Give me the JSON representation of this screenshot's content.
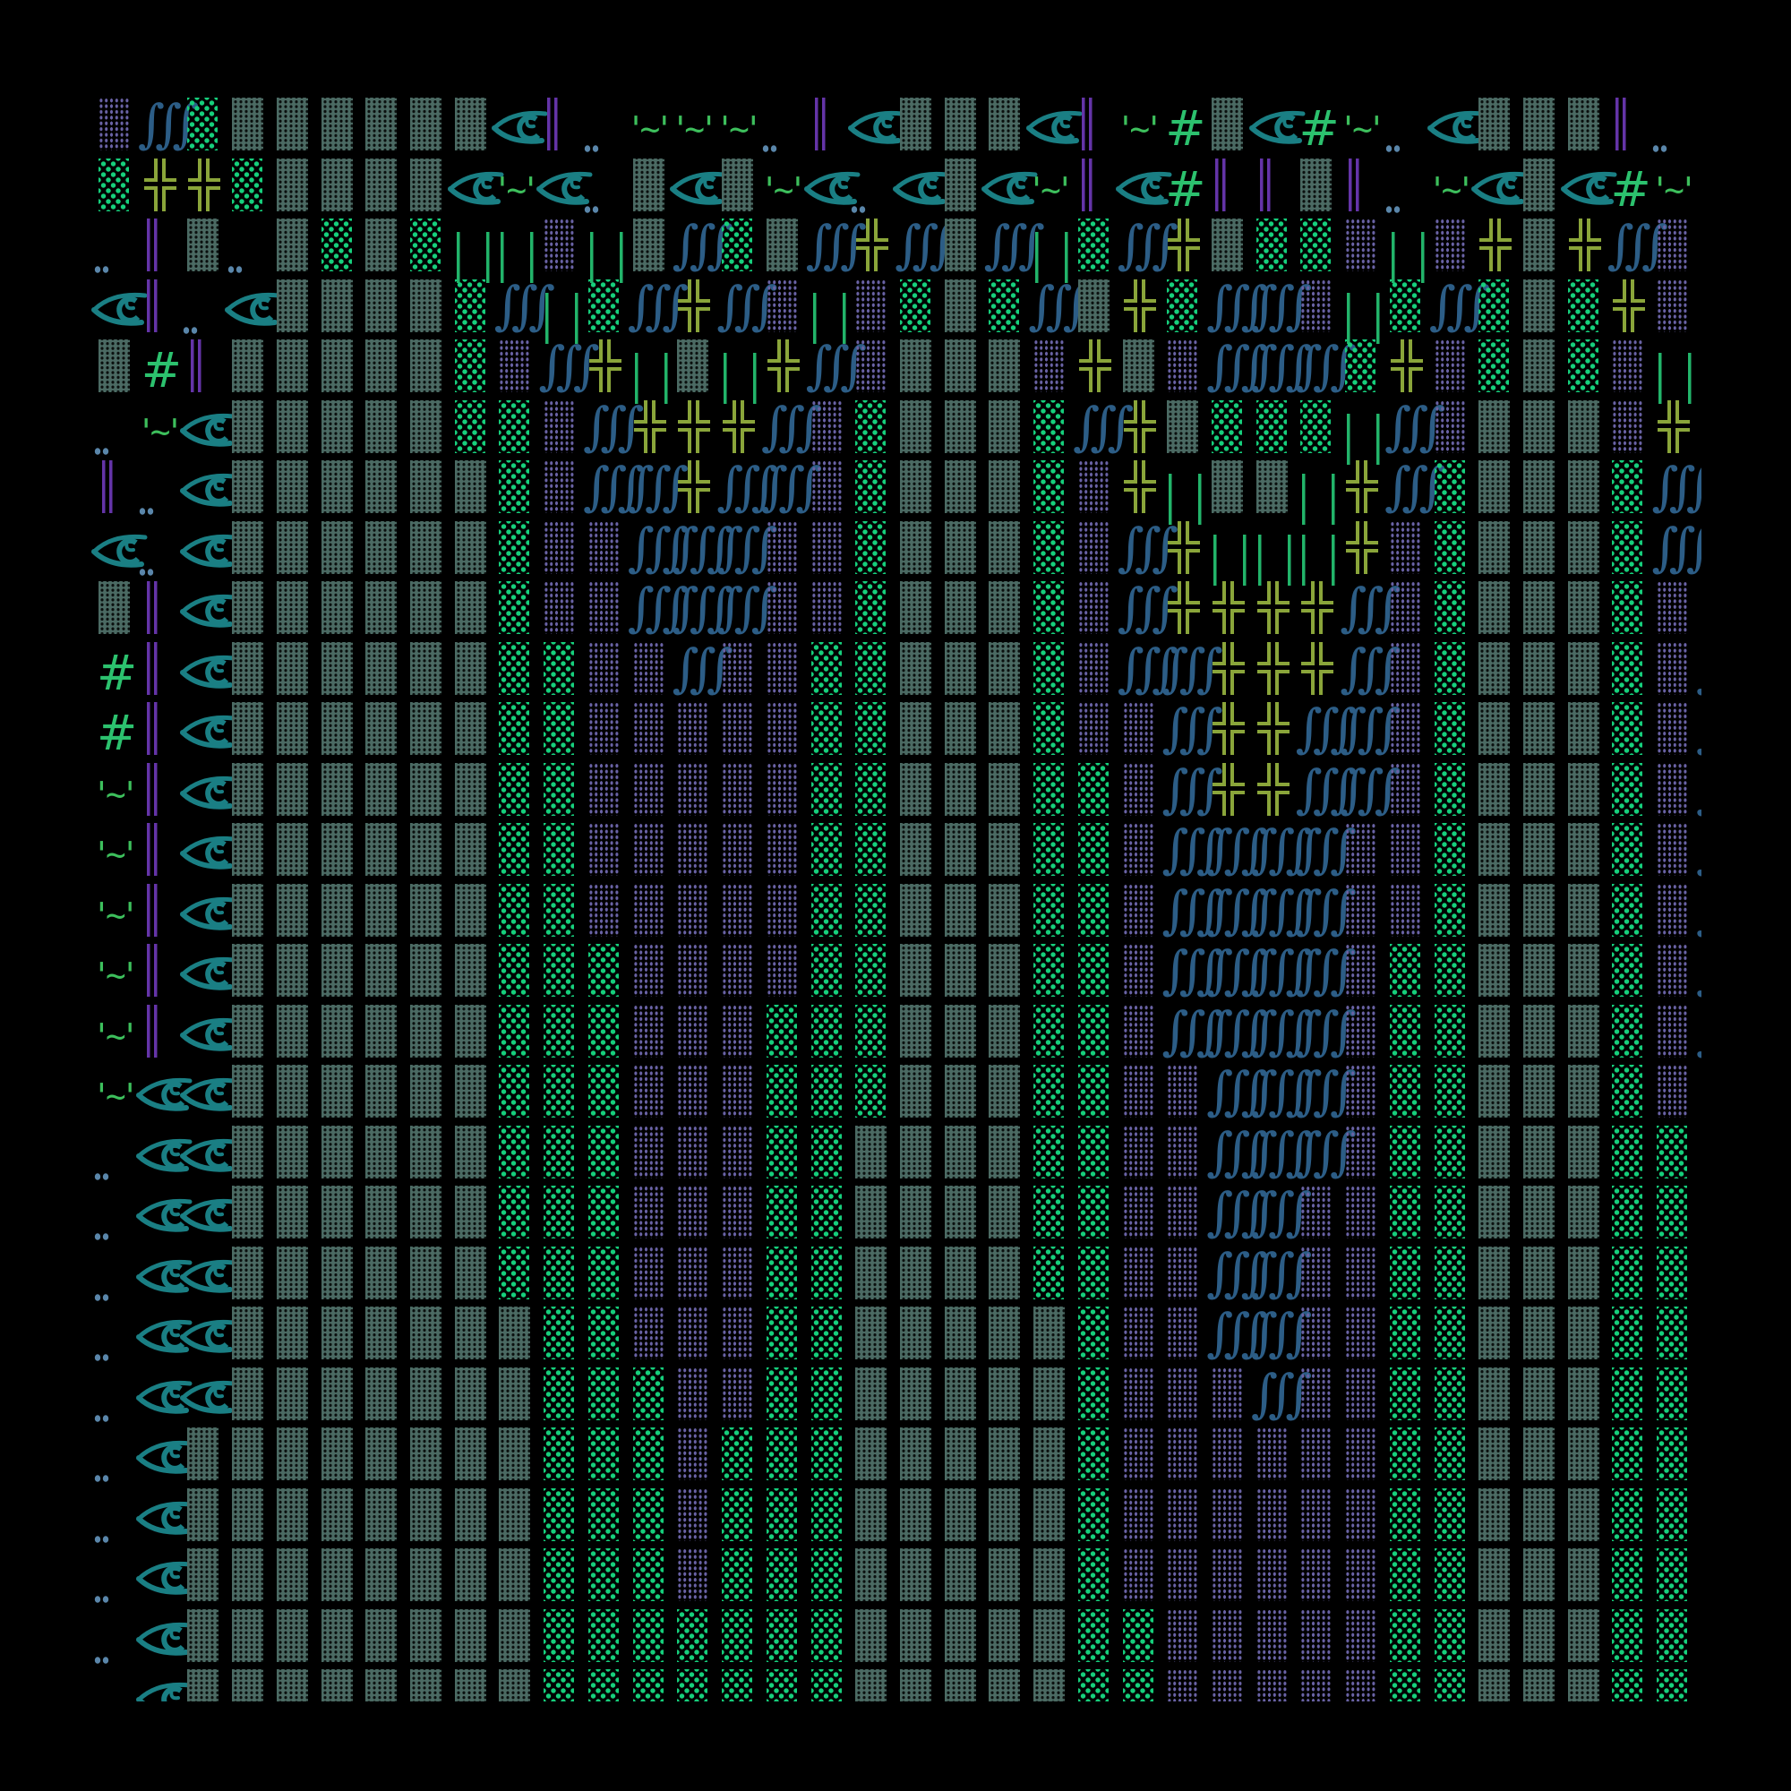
{
  "background": "#000000",
  "legend": {
    "D": {
      "kind": "dark",
      "glyph": "▓",
      "name": "dark-shade-block",
      "color": "#4b6a63"
    },
    "P": {
      "kind": "light",
      "glyph": "░",
      "name": "light-shade-block",
      "color": "#6a63a6"
    },
    "G": {
      "kind": "green",
      "glyph": "░",
      "name": "green-dot-block",
      "color": "#16cf7c"
    },
    "S": {
      "kind": "integral",
      "glyph": "∭",
      "name": "triple-integral-glyph",
      "color": "#2c5d86"
    },
    "E": {
      "kind": "eye",
      "glyph": "👁",
      "name": "eye-icon",
      "color": "#1a7f84"
    },
    "X": {
      "kind": "cross",
      "glyph": "╬",
      "name": "box-cross-glyph",
      "color": "#8aa53a"
    },
    "V": {
      "kind": "dbar",
      "glyph": "‖",
      "name": "double-bar-glyph",
      "color": "#6434a8"
    },
    "O": {
      "kind": "dots",
      "glyph": "‥",
      "name": "two-dot-leader-glyph",
      "color": "#5a86aa"
    },
    "T": {
      "kind": "tilde",
      "glyph": "'~'",
      "name": "tilde-quote-glyph",
      "color": "#3dbf5c"
    },
    "H": {
      "kind": "hash",
      "glyph": "#",
      "name": "hash-glyph",
      "color": "#2cc16e"
    },
    "L": {
      "kind": "pipes",
      "glyph": "| |",
      "name": "pipe-pair-glyph",
      "color": "#22b46a"
    }
  },
  "grid": {
    "rows": [
      "PSGDDDDDDEVOTTTOVEDDDEVTHDEHTOEDDDVOH",
      "GXXGDDDDETEODEDTEOEDETVEHVVDVOTEDEHTT",
      "OVDODGDGLLPLDSGDSXSDSLGSXDGGPLPXDXSPP",
      "EVOEDDDDGSLGSXSPLPGDGSDXGSSPLGSGDGXPG",
      "DHVDDDDDGPSXLDLXSPDDDPXDPSSSGXPGDGPLP",
      "OTEDDDDDGGPSXXXSPGDDDGSXDGGGLSPDDDPXD",
      "VOEDDDDDDGPSSXSSPGDDDGPXLDDLXSGDDDGSL",
      "EOEDDDDDDGPPSSSPPGDDDGPSXLLLXPGDDDGSG",
      "DVEDDDDDDGPPSSSPPGDDDGPSXXXXSPGDDDGPX",
      "HVEDDDDDDGGPPSPPGGDDDGPSSXXXSPGDDDGPS",
      "HVEDDDDDDGGPPPPPGGDDDGPPSXXSSPGDDDGPS",
      "TVEDDDDDDGGPPPPPGGDDDGGPSXXSSPGDDDGPS",
      "TVEDDDDDDGGPPPPPGGDDDGGPSSSSPPGDDDGPS",
      "TVEDDDDDDGGPPPPPGGDDDGGPSSSSPPGDDDGPS",
      "TVEDDDDDDGGGPPPPGGDDDGGPSSSSPGGDDDGPS",
      "TVEDDDDDDGGGPPPGGGDDDGGPSSSSPGGDDDGPS",
      "TEEDDDDDDGGGPPPGGGDDDGGPPSSSPGGDDDGPP",
      "OEEDDDDDDGGGPPPGGDDDDGGPPSSSPGGDDDGGP",
      "OEEDDDDDDGGGPPPGGDDDDGGPPSSPPGGDDDGGP",
      "OEEDDDDDDGGGPPPGGDDDDGGPPSSPPGGDDDGGP",
      "OEEDDDDDDDGGPPPGGDDDDDGPPSSPPGGDDDGGP",
      "OEEDDDDDDDGGGPPGGDDDDDGPPPSPPGGDDDGGP",
      "OEDDDDDDDDGGGPGGGDDDDDGPPPPPPGGDDDGGP",
      "OEDDDDDDDDGGGPGGGDDDDDGPPPPPPGGDDDGGP",
      "OEDDDDDDDDGGGPGGGDDDDDGPPPPPPGGDDDGGP",
      "OEDDDDDDDDGGGGGGGDDDDDGGPPPPPGGDDDGGP",
      " EDDDDDDDDGGGGGGGDDDDDGGPPPPPGGDDDGGP"
    ]
  }
}
